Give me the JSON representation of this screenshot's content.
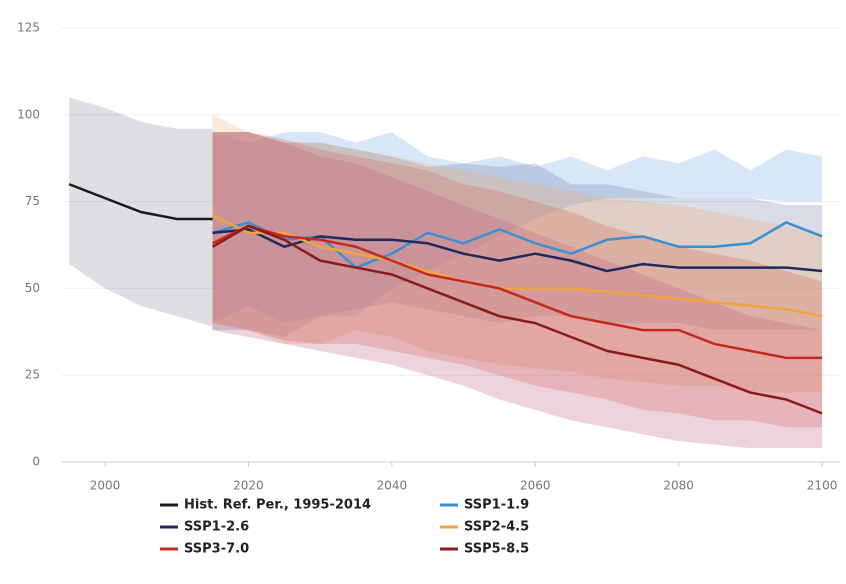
{
  "chart_data": {
    "type": "line",
    "xlim": [
      1994,
      2102.5
    ],
    "xticks": [
      2000,
      2020,
      2040,
      2060,
      2080,
      2100
    ],
    "ylim": [
      0,
      125
    ],
    "yticks": [
      0,
      25,
      50,
      75,
      100,
      125
    ],
    "grid": true,
    "series": [
      {
        "name": "Hist. Ref. Per., 1995-2014",
        "color": "#1a1a1a",
        "band_color": "#8a8a9a",
        "x": [
          1995,
          2000,
          2005,
          2010,
          2015
        ],
        "values": [
          80,
          76,
          72,
          70,
          70
        ],
        "lower": [
          57,
          50,
          45,
          42,
          39
        ],
        "upper": [
          105,
          102,
          98,
          96,
          96
        ]
      },
      {
        "name": "SSP1-1.9",
        "color": "#3a8fd1",
        "band_color": "#6fa8e6",
        "x": [
          2015,
          2020,
          2025,
          2030,
          2035,
          2040,
          2045,
          2050,
          2055,
          2060,
          2065,
          2070,
          2075,
          2080,
          2085,
          2090,
          2095,
          2100
        ],
        "values": [
          66,
          69,
          64,
          65,
          56,
          60,
          66,
          63,
          67,
          63,
          60,
          64,
          65,
          62,
          62,
          63,
          69,
          65
        ],
        "lower": [
          40,
          45,
          40,
          42,
          42,
          50,
          55,
          60,
          65,
          70,
          74,
          76,
          76,
          76,
          76,
          76,
          75,
          75
        ],
        "upper": [
          95,
          92,
          95,
          95,
          92,
          95,
          88,
          86,
          88,
          85,
          88,
          84,
          88,
          86,
          90,
          84,
          90,
          88
        ]
      },
      {
        "name": "SSP1-2.6",
        "color": "#1f2a5c",
        "band_color": "#7080a8",
        "x": [
          2015,
          2020,
          2025,
          2030,
          2035,
          2040,
          2045,
          2050,
          2055,
          2060,
          2065,
          2070,
          2075,
          2080,
          2085,
          2090,
          2095,
          2100
        ],
        "values": [
          66,
          67,
          62,
          65,
          64,
          64,
          63,
          60,
          58,
          60,
          58,
          55,
          57,
          56,
          56,
          56,
          56,
          55
        ],
        "lower": [
          38,
          38,
          36,
          42,
          44,
          46,
          44,
          42,
          40,
          42,
          42,
          40,
          40,
          40,
          38,
          38,
          38,
          38
        ],
        "upper": [
          95,
          95,
          92,
          92,
          90,
          88,
          85,
          86,
          85,
          86,
          80,
          80,
          78,
          76,
          76,
          76,
          74,
          74
        ]
      },
      {
        "name": "SSP2-4.5",
        "color": "#f1a340",
        "band_color": "#f4b070",
        "x": [
          2015,
          2020,
          2025,
          2030,
          2035,
          2040,
          2045,
          2050,
          2055,
          2060,
          2065,
          2070,
          2075,
          2080,
          2085,
          2090,
          2095,
          2100
        ],
        "values": [
          71,
          66,
          66,
          62,
          60,
          58,
          55,
          52,
          50,
          50,
          50,
          49,
          48,
          47,
          46,
          45,
          44,
          42
        ],
        "lower": [
          40,
          38,
          34,
          34,
          38,
          36,
          32,
          30,
          28,
          27,
          26,
          24,
          23,
          22,
          22,
          20,
          20,
          20
        ],
        "upper": [
          100,
          95,
          92,
          92,
          90,
          88,
          86,
          84,
          82,
          80,
          78,
          76,
          75,
          74,
          72,
          70,
          68,
          66
        ]
      },
      {
        "name": "SSP3-7.0",
        "color": "#c4291c",
        "band_color": "#d9604f",
        "x": [
          2015,
          2020,
          2025,
          2030,
          2035,
          2040,
          2045,
          2050,
          2055,
          2060,
          2065,
          2070,
          2075,
          2080,
          2085,
          2090,
          2095,
          2100
        ],
        "values": [
          63,
          68,
          65,
          64,
          62,
          58,
          54,
          52,
          50,
          46,
          42,
          40,
          38,
          38,
          34,
          32,
          30,
          30
        ],
        "lower": [
          40,
          38,
          35,
          34,
          34,
          32,
          30,
          28,
          25,
          22,
          20,
          18,
          15,
          14,
          12,
          12,
          10,
          10
        ],
        "upper": [
          95,
          95,
          93,
          90,
          88,
          86,
          84,
          80,
          78,
          75,
          72,
          68,
          65,
          62,
          60,
          58,
          55,
          52
        ]
      },
      {
        "name": "SSP5-8.5",
        "color": "#8b1a1a",
        "band_color": "#c06080",
        "x": [
          2015,
          2020,
          2025,
          2030,
          2035,
          2040,
          2045,
          2050,
          2055,
          2060,
          2065,
          2070,
          2075,
          2080,
          2085,
          2090,
          2095,
          2100
        ],
        "values": [
          62,
          68,
          64,
          58,
          56,
          54,
          50,
          46,
          42,
          40,
          36,
          32,
          30,
          28,
          24,
          20,
          18,
          14
        ],
        "lower": [
          38,
          36,
          34,
          32,
          30,
          28,
          25,
          22,
          18,
          15,
          12,
          10,
          8,
          6,
          5,
          4,
          4,
          4
        ],
        "upper": [
          95,
          95,
          92,
          88,
          86,
          82,
          78,
          74,
          70,
          66,
          62,
          58,
          54,
          50,
          46,
          42,
          40,
          38
        ]
      }
    ]
  }
}
